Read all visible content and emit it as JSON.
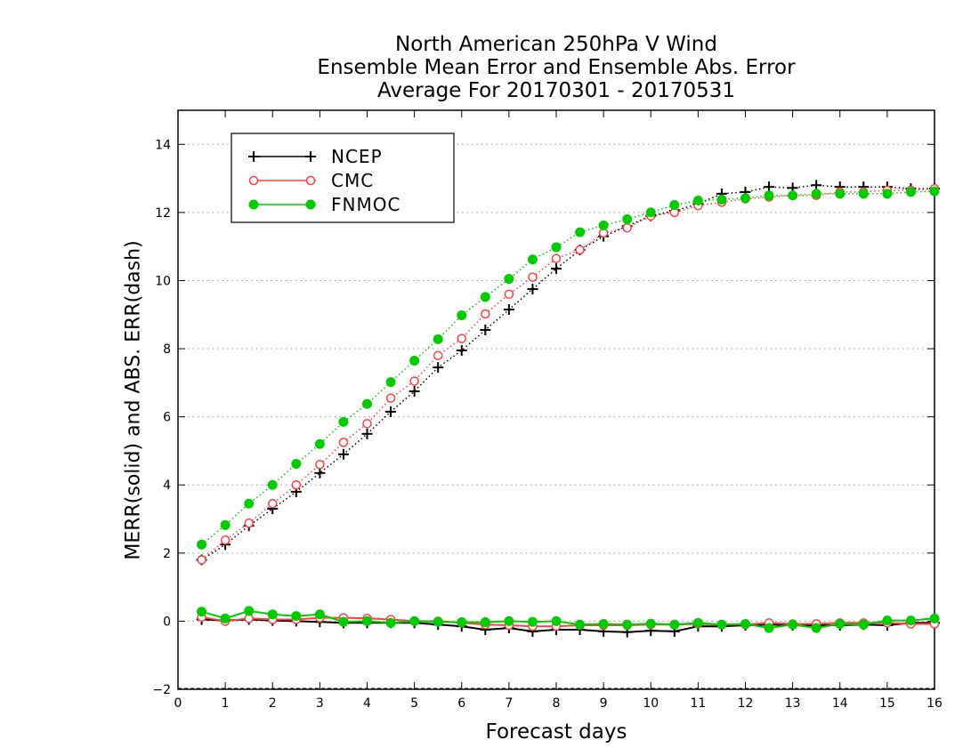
{
  "title_lines": [
    "North American 250hPa V Wind",
    "Ensemble Mean Error and Ensemble Abs. Error",
    "Average For 20170301 - 20170531"
  ],
  "chart_data": {
    "type": "line",
    "xlabel": "Forecast days",
    "ylabel": "MERR(solid) and ABS. ERR(dash)",
    "xlim": [
      0,
      16
    ],
    "ylim": [
      -2,
      15
    ],
    "xticks": [
      0,
      1,
      2,
      3,
      4,
      5,
      6,
      7,
      8,
      9,
      10,
      11,
      12,
      13,
      14,
      15,
      16
    ],
    "yticks": [
      -2,
      0,
      2,
      4,
      6,
      8,
      10,
      12,
      14
    ],
    "grid": "horizontal dotted",
    "legend_position": "top-left",
    "x": [
      0.5,
      1,
      1.5,
      2,
      2.5,
      3,
      3.5,
      4,
      4.5,
      5,
      5.5,
      6,
      6.5,
      7,
      7.5,
      8,
      8.5,
      9,
      9.5,
      10,
      10.5,
      11,
      11.5,
      12,
      12.5,
      13,
      13.5,
      14,
      14.5,
      15,
      15.5,
      16
    ],
    "series": [
      {
        "name": "NCEP",
        "color": "#000000",
        "marker": "plus",
        "abs_err_dash": [
          1.8,
          2.25,
          2.8,
          3.3,
          3.8,
          4.35,
          4.9,
          5.5,
          6.15,
          6.75,
          7.45,
          7.95,
          8.55,
          9.15,
          9.75,
          10.35,
          10.9,
          11.3,
          11.6,
          11.9,
          12.05,
          12.25,
          12.55,
          12.6,
          12.75,
          12.72,
          12.8,
          12.75,
          12.75,
          12.75,
          12.7,
          12.7
        ],
        "mean_err_solid": [
          0.05,
          0.02,
          0.05,
          0.02,
          0.0,
          -0.02,
          -0.05,
          -0.05,
          -0.05,
          -0.05,
          -0.1,
          -0.15,
          -0.25,
          -0.2,
          -0.3,
          -0.25,
          -0.25,
          -0.3,
          -0.32,
          -0.28,
          -0.3,
          -0.15,
          -0.15,
          -0.12,
          -0.1,
          -0.12,
          -0.12,
          -0.12,
          -0.1,
          -0.12,
          -0.05,
          -0.05
        ]
      },
      {
        "name": "CMC",
        "color": "#ff4040",
        "marker": "open-circle",
        "abs_err_dash": [
          1.8,
          2.38,
          2.88,
          3.45,
          4.0,
          4.6,
          5.25,
          5.8,
          6.55,
          7.05,
          7.8,
          8.3,
          9.02,
          9.6,
          10.1,
          10.65,
          10.9,
          11.4,
          11.55,
          11.9,
          12.0,
          12.2,
          12.3,
          12.4,
          12.45,
          12.5,
          12.5,
          12.6,
          12.6,
          12.65,
          12.65,
          12.7
        ],
        "mean_err_solid": [
          0.12,
          0.0,
          0.08,
          0.05,
          0.05,
          0.1,
          0.1,
          0.08,
          0.05,
          0.0,
          0.0,
          -0.05,
          -0.1,
          -0.12,
          -0.15,
          -0.15,
          -0.12,
          -0.12,
          -0.12,
          -0.1,
          -0.1,
          -0.08,
          -0.1,
          -0.1,
          -0.05,
          -0.08,
          -0.08,
          -0.05,
          -0.05,
          -0.05,
          -0.08,
          -0.08
        ]
      },
      {
        "name": "FNMOC",
        "color": "#00cc00",
        "marker": "filled-circle",
        "abs_err_dash": [
          2.25,
          2.82,
          3.45,
          4.0,
          4.62,
          5.2,
          5.85,
          6.38,
          7.02,
          7.65,
          8.28,
          8.98,
          9.52,
          10.05,
          10.62,
          10.98,
          11.42,
          11.62,
          11.8,
          12.0,
          12.22,
          12.35,
          12.38,
          12.42,
          12.5,
          12.5,
          12.55,
          12.55,
          12.55,
          12.55,
          12.6,
          12.62
        ],
        "mean_err_solid": [
          0.28,
          0.08,
          0.3,
          0.2,
          0.15,
          0.2,
          -0.02,
          0.0,
          -0.05,
          0.0,
          -0.02,
          -0.03,
          -0.03,
          0.0,
          -0.02,
          0.0,
          -0.1,
          -0.08,
          -0.1,
          -0.07,
          -0.1,
          -0.05,
          -0.1,
          -0.08,
          -0.2,
          -0.1,
          -0.2,
          -0.08,
          -0.1,
          0.02,
          0.02,
          0.08
        ]
      }
    ]
  }
}
